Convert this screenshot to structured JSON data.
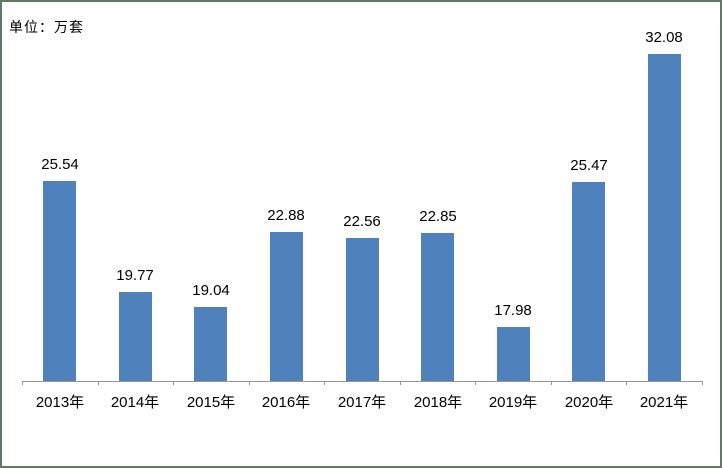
{
  "header": {
    "unit_label": "单位：万套"
  },
  "chart_data": {
    "type": "bar",
    "title": "",
    "unit_label": "单位：万套",
    "categories": [
      "2013年",
      "2014年",
      "2015年",
      "2016年",
      "2017年",
      "2018年",
      "2019年",
      "2020年",
      "2021年"
    ],
    "values": [
      25.54,
      19.77,
      19.04,
      22.88,
      22.56,
      22.85,
      17.98,
      25.47,
      32.08
    ],
    "data_labels": [
      "25.54",
      "19.77",
      "19.04",
      "22.88",
      "22.56",
      "22.85",
      "17.98",
      "25.47",
      "32.08"
    ],
    "ylim": [
      15.2,
      34.8
    ],
    "grid": false,
    "legend": false,
    "show_data_labels": true,
    "bar_color": "#4f81bd",
    "axis_color": "#959595",
    "frame_border_color": "#5f7a61",
    "background_color": "#ffffff",
    "label_color": "#000000"
  }
}
